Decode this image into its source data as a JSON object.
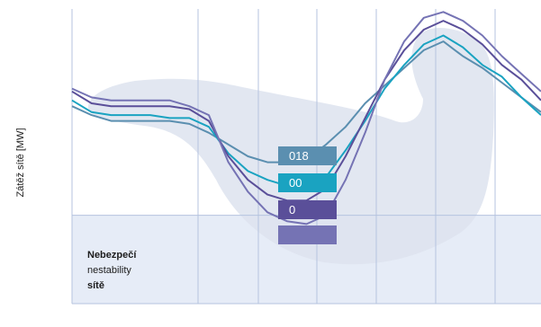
{
  "chart_data": {
    "type": "line",
    "title": "",
    "xlabel": "",
    "ylabel": "Zátěž sítě [MW]",
    "x": [
      0,
      1,
      2,
      3,
      4,
      5,
      6,
      7,
      8,
      9,
      10,
      11,
      12,
      13,
      14,
      15,
      16,
      17,
      18,
      19,
      20,
      21,
      22,
      23,
      24
    ],
    "x_tick_labels": [
      "",
      "",
      "",
      "",
      ""
    ],
    "ylim": [
      0,
      100
    ],
    "grid": true,
    "legend": "none",
    "danger_zone": {
      "ymax": 30,
      "label_lines": [
        "Nebezpečí",
        "nestability",
        "sítě"
      ]
    },
    "corner_glyph": "",
    "series": [
      {
        "label": "018",
        "color": "#5b8fb0",
        "values": [
          67,
          64,
          62,
          62,
          62,
          62,
          61,
          58,
          54,
          50,
          48,
          48,
          49,
          54,
          60,
          68,
          74,
          80,
          86,
          89,
          84,
          80,
          75,
          70,
          65
        ]
      },
      {
        "label": "00",
        "color": "#1aa3c1",
        "values": [
          69,
          65,
          64,
          64,
          64,
          63,
          63,
          60,
          51,
          45,
          42,
          40,
          40,
          43,
          52,
          62,
          73,
          81,
          88,
          91,
          87,
          81,
          77,
          70,
          64
        ]
      },
      {
        "label": "0",
        "color": "#5a4f99",
        "values": [
          72,
          68,
          67,
          67,
          67,
          67,
          66,
          62,
          50,
          42,
          37,
          35,
          35,
          39,
          50,
          63,
          76,
          86,
          93,
          96,
          93,
          88,
          81,
          76,
          69
        ]
      },
      {
        "label": "",
        "color": "#7573b4",
        "values": [
          73,
          70,
          69,
          69,
          69,
          69,
          67,
          64,
          48,
          38,
          31,
          28,
          27,
          30,
          42,
          58,
          76,
          89,
          97,
          99,
          96,
          91,
          84,
          78,
          72
        ]
      }
    ]
  }
}
